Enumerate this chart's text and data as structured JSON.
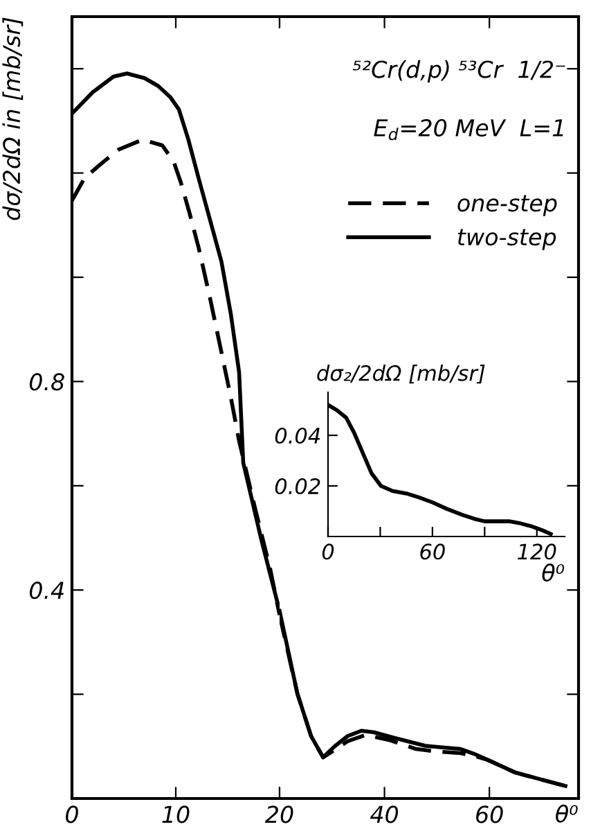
{
  "chart_data": [
    {
      "type": "line",
      "ylabel": "dσ/2dΩ in [mb/sr]",
      "xlim": [
        0,
        20
      ],
      "xticks": [
        0,
        10,
        20
      ],
      "ylim": [
        0,
        1.5
      ],
      "yticks": [
        {
          "value": 0.2,
          "label": null
        },
        0.4,
        {
          "value": 0.6,
          "label": null
        },
        0.8,
        {
          "value": 1.0,
          "label": null
        },
        {
          "value": 1.2,
          "label": null
        },
        {
          "value": 1.4,
          "label": null
        }
      ],
      "grid": false,
      "series": [
        {
          "color": "#000000",
          "line_style": "dashed",
          "x": [
            0,
            1.2,
            2.7,
            4.5,
            6.8,
            8.7,
            9.8,
            10.5,
            11.3,
            12.2,
            13.3,
            14.4,
            15.3,
            16.1,
            17.6,
            19.1,
            20
          ],
          "values": [
            1.147,
            1.19,
            1.216,
            1.245,
            1.264,
            1.253,
            1.222,
            1.181,
            1.125,
            1.057,
            0.96,
            0.856,
            0.77,
            0.686,
            0.56,
            0.44,
            0.352
          ]
        },
        {
          "color": "#000000",
          "line_style": "solid",
          "x": [
            0,
            2,
            4,
            5.3,
            7,
            8.3,
            9.5,
            10.3,
            11.2,
            12.2,
            13.3,
            14.4,
            15.3,
            16.1,
            16.5,
            18.2,
            20
          ],
          "values": [
            1.314,
            1.355,
            1.385,
            1.391,
            1.382,
            1.367,
            1.345,
            1.322,
            1.265,
            1.19,
            1.11,
            1.03,
            0.93,
            0.818,
            0.644,
            0.5,
            0.36
          ]
        }
      ]
    },
    {
      "type": "line",
      "xlabel": "θ⁰",
      "annotations": [
        "⁵²Cr(d,p) ⁵³Cr  1/2⁻",
        "E$_{d}$=20 MeV  L=1"
      ],
      "xlim": [
        20,
        77
      ],
      "xticks": [
        {
          "value": 20,
          "label": null
        },
        40,
        60
      ],
      "ylim": [
        0,
        1.5
      ],
      "yticks": [
        {
          "value": 0.2,
          "label": null
        },
        {
          "value": 0.4,
          "label": null
        },
        {
          "value": 0.6,
          "label": null
        },
        {
          "value": 0.8,
          "label": null
        },
        {
          "value": 1.0,
          "label": null
        },
        {
          "value": 1.2,
          "label": null
        },
        {
          "value": 1.4,
          "label": null
        }
      ],
      "tick_labels": "x",
      "legend": "top right",
      "grid": false,
      "series": [
        {
          "name": "one-step",
          "color": "#000000",
          "line_style": "dashed",
          "x": [
            20,
            23.4,
            26,
            28.3,
            30.5,
            33,
            36.4,
            41,
            46,
            50,
            54.5,
            57,
            59.7,
            64.9,
            70,
            74.5
          ],
          "values": [
            0.352,
            0.201,
            0.12,
            0.079,
            0.093,
            0.11,
            0.122,
            0.112,
            0.095,
            0.09,
            0.087,
            0.082,
            0.074,
            0.05,
            0.036,
            0.024
          ]
        },
        {
          "name": "two-step",
          "color": "#000000",
          "line_style": "solid",
          "x": [
            20,
            23.4,
            26,
            28.3,
            30.5,
            33,
            35.6,
            38,
            41.6,
            47.8,
            51,
            54.5,
            57,
            59.7,
            64.9,
            70,
            74.5
          ],
          "values": [
            0.36,
            0.201,
            0.12,
            0.079,
            0.1,
            0.12,
            0.13,
            0.127,
            0.117,
            0.101,
            0.098,
            0.095,
            0.086,
            0.074,
            0.05,
            0.036,
            0.024
          ]
        }
      ]
    },
    {
      "type": "line",
      "ylabel": "dσ₂/2dΩ [mb/sr]",
      "xlabel": "θ⁰",
      "xlim": [
        0,
        136
      ],
      "xticks": [
        0,
        {
          "value": 30,
          "label": null
        },
        60,
        {
          "value": 90,
          "label": null
        },
        120
      ],
      "ylim": [
        0,
        0.057
      ],
      "yticks": [
        0.02,
        0.04
      ],
      "grid": false,
      "series": [
        {
          "color": "#000000",
          "line_style": "solid",
          "x": [
            0,
            5,
            10.4,
            15,
            20,
            25,
            30.4,
            37,
            45,
            52,
            60,
            68,
            77,
            84,
            90,
            97,
            104,
            110,
            117,
            123,
            128
          ],
          "values": [
            0.052,
            0.05,
            0.047,
            0.041,
            0.033,
            0.025,
            0.02,
            0.018,
            0.017,
            0.0155,
            0.0135,
            0.011,
            0.0086,
            0.007,
            0.006,
            0.006,
            0.006,
            0.0053,
            0.004,
            0.0025,
            0.001
          ]
        }
      ]
    }
  ]
}
